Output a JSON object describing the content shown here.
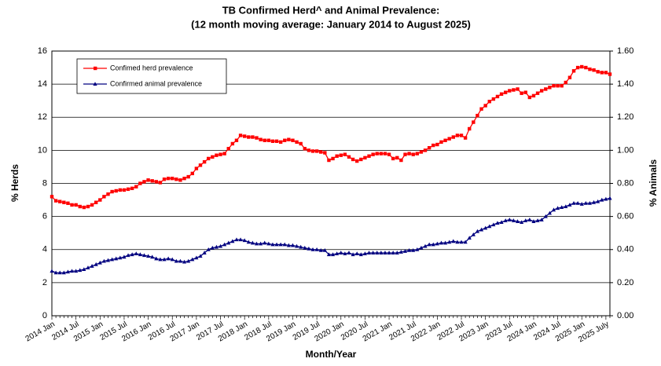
{
  "chart_data": {
    "type": "line",
    "title": "TB Confirmed Herd^ and Animal Prevalence:",
    "subtitle": "(12 month moving average: January 2014 to August 2025)",
    "x_label": "Month/Year",
    "y_label": "% Herds",
    "y2_label": "% Animals",
    "categories": [
      "2014 Jan",
      null,
      null,
      null,
      null,
      null,
      "2014 Jul",
      null,
      null,
      null,
      null,
      null,
      "2015 Jan",
      null,
      null,
      null,
      null,
      null,
      "2015 Jul",
      null,
      null,
      null,
      null,
      null,
      "2016 Jan",
      null,
      null,
      null,
      null,
      null,
      "2016 Jul",
      null,
      null,
      null,
      null,
      null,
      "2017 Jan",
      null,
      null,
      null,
      null,
      null,
      "2017 Jul",
      null,
      null,
      null,
      null,
      null,
      "2018 Jan",
      null,
      null,
      null,
      null,
      null,
      "2018 Jul",
      null,
      null,
      null,
      null,
      null,
      "2019 Jan",
      null,
      null,
      null,
      null,
      null,
      "2019 Jul",
      null,
      null,
      null,
      null,
      null,
      "2020 Jan",
      null,
      null,
      null,
      null,
      null,
      "2020 Jul",
      null,
      null,
      null,
      null,
      null,
      "2021 Jan",
      null,
      null,
      null,
      null,
      null,
      "2021 Jul",
      null,
      null,
      null,
      null,
      null,
      "2022 Jan",
      null,
      null,
      null,
      null,
      null,
      "2022 Jul",
      null,
      null,
      null,
      null,
      null,
      "2023 Jan",
      null,
      null,
      null,
      null,
      null,
      "2023 Jul",
      null,
      null,
      null,
      null,
      null,
      "2024 Jan",
      null,
      null,
      null,
      null,
      null,
      "2024 Jul",
      null,
      null,
      null,
      null,
      null,
      "2025 Jan",
      null,
      null,
      null,
      null,
      null,
      "2025 July",
      null
    ],
    "series": [
      {
        "name": "Confimed herd prevalence",
        "color": "#ff0000",
        "marker": "square",
        "values": [
          7.2,
          6.95,
          6.9,
          6.85,
          6.8,
          6.7,
          6.7,
          6.6,
          6.55,
          6.6,
          6.7,
          6.85,
          7.0,
          7.2,
          7.35,
          7.5,
          7.55,
          7.6,
          7.6,
          7.65,
          7.7,
          7.8,
          8.0,
          8.1,
          8.2,
          8.15,
          8.1,
          8.05,
          8.25,
          8.3,
          8.3,
          8.25,
          8.2,
          8.3,
          8.4,
          8.6,
          8.9,
          9.1,
          9.3,
          9.5,
          9.6,
          9.7,
          9.75,
          9.8,
          10.1,
          10.4,
          10.6,
          10.9,
          10.85,
          10.8,
          10.8,
          10.75,
          10.65,
          10.6,
          10.6,
          10.55,
          10.55,
          10.5,
          10.6,
          10.65,
          10.6,
          10.5,
          10.4,
          10.1,
          10.0,
          9.95,
          9.95,
          9.9,
          9.85,
          9.4,
          9.5,
          9.65,
          9.7,
          9.75,
          9.6,
          9.45,
          9.35,
          9.45,
          9.55,
          9.65,
          9.75,
          9.8,
          9.8,
          9.8,
          9.75,
          9.5,
          9.55,
          9.4,
          9.75,
          9.8,
          9.75,
          9.8,
          9.9,
          10.0,
          10.15,
          10.3,
          10.35,
          10.5,
          10.6,
          10.7,
          10.8,
          10.9,
          10.9,
          10.75,
          11.3,
          11.7,
          12.1,
          12.5,
          12.7,
          12.95,
          13.1,
          13.25,
          13.4,
          13.5,
          13.6,
          13.65,
          13.7,
          13.45,
          13.5,
          13.2,
          13.3,
          13.45,
          13.6,
          13.7,
          13.8,
          13.9,
          13.9,
          13.9,
          14.1,
          14.4,
          14.8,
          15.0,
          15.05,
          15.0,
          14.9,
          14.85,
          14.75,
          14.7,
          14.7,
          14.6
        ]
      },
      {
        "name": "Confirmed animal prevalence",
        "color": "#000080",
        "marker": "triangle",
        "axis": "y2",
        "values": [
          0.27,
          0.26,
          0.26,
          0.26,
          0.265,
          0.27,
          0.27,
          0.275,
          0.28,
          0.29,
          0.3,
          0.31,
          0.32,
          0.33,
          0.335,
          0.34,
          0.345,
          0.35,
          0.355,
          0.365,
          0.37,
          0.375,
          0.37,
          0.365,
          0.36,
          0.355,
          0.345,
          0.34,
          0.34,
          0.345,
          0.34,
          0.33,
          0.33,
          0.325,
          0.33,
          0.34,
          0.35,
          0.36,
          0.38,
          0.4,
          0.41,
          0.415,
          0.42,
          0.43,
          0.44,
          0.45,
          0.46,
          0.46,
          0.455,
          0.445,
          0.44,
          0.435,
          0.435,
          0.44,
          0.435,
          0.43,
          0.43,
          0.43,
          0.43,
          0.425,
          0.425,
          0.42,
          0.415,
          0.41,
          0.405,
          0.4,
          0.4,
          0.395,
          0.395,
          0.37,
          0.37,
          0.375,
          0.38,
          0.375,
          0.38,
          0.37,
          0.375,
          0.37,
          0.375,
          0.38,
          0.38,
          0.38,
          0.38,
          0.38,
          0.38,
          0.38,
          0.38,
          0.385,
          0.39,
          0.395,
          0.395,
          0.4,
          0.41,
          0.42,
          0.43,
          0.43,
          0.435,
          0.44,
          0.44,
          0.445,
          0.45,
          0.445,
          0.445,
          0.445,
          0.47,
          0.49,
          0.51,
          0.52,
          0.53,
          0.54,
          0.55,
          0.56,
          0.565,
          0.575,
          0.58,
          0.575,
          0.57,
          0.565,
          0.575,
          0.58,
          0.57,
          0.575,
          0.58,
          0.6,
          0.62,
          0.64,
          0.65,
          0.655,
          0.66,
          0.67,
          0.68,
          0.68,
          0.675,
          0.68,
          0.68,
          0.685,
          0.69,
          0.7,
          0.705,
          0.71
        ]
      }
    ],
    "ylim": [
      0,
      16
    ],
    "yticks": [
      0,
      2,
      4,
      6,
      8,
      10,
      12,
      14,
      16
    ],
    "y2lim": [
      0,
      1.6
    ],
    "y2ticks": [
      {
        "value": 0,
        "label": "0.00"
      },
      {
        "value": 0.2,
        "label": "0.20"
      },
      {
        "value": 0.4,
        "label": "0.40"
      },
      {
        "value": 0.6,
        "label": "0.60"
      },
      {
        "value": 0.8,
        "label": "0.80"
      },
      {
        "value": 1.0,
        "label": "1.00"
      },
      {
        "value": 1.2,
        "label": "1.20"
      },
      {
        "value": 1.4,
        "label": "1.40"
      },
      {
        "value": 1.6,
        "label": "1.60"
      }
    ],
    "grid": true,
    "legend": "upper left"
  }
}
